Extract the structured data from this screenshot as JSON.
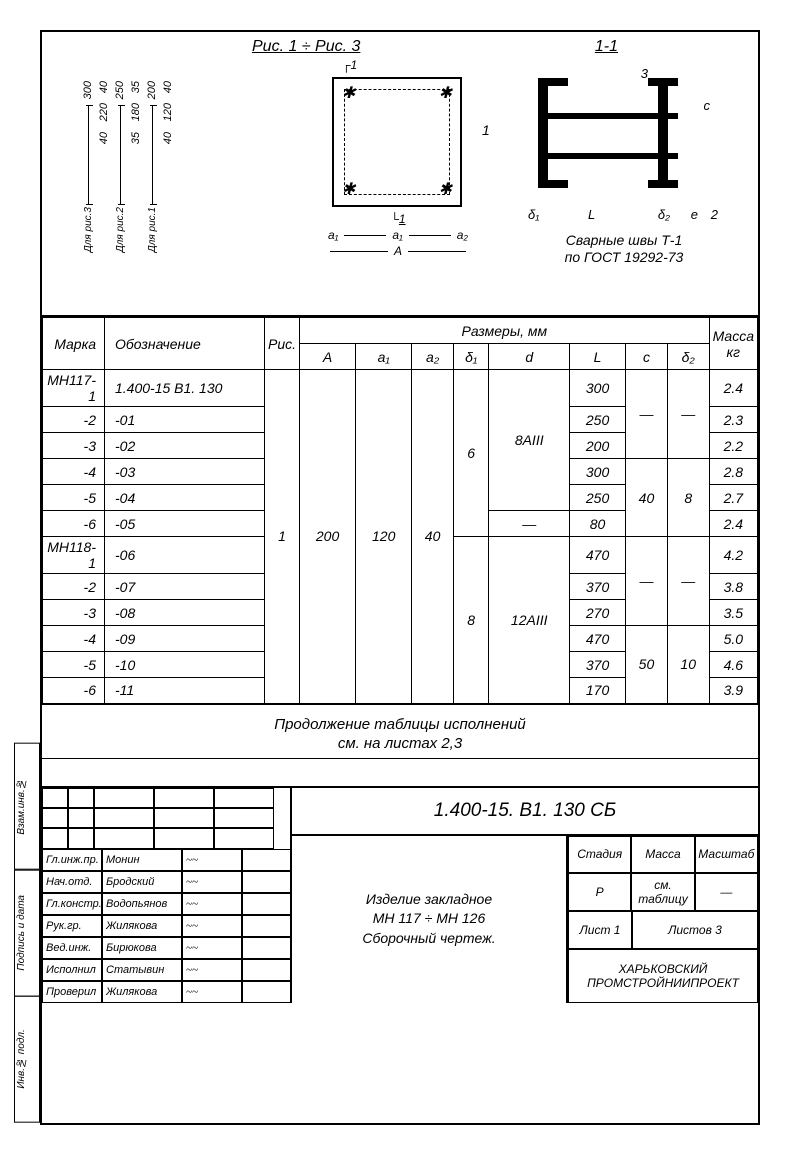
{
  "figure": {
    "title": "Рис. 1 ÷ Рис. 3",
    "section_label": "1-1",
    "dim_cols": [
      {
        "label": "Для рис.3",
        "vals": [
          "40",
          "220",
          "40",
          "300"
        ]
      },
      {
        "label": "Для рис.2",
        "vals": [
          "35",
          "180",
          "35",
          "250"
        ]
      },
      {
        "label": "Для рис.1",
        "vals": [
          "40",
          "120",
          "40",
          "200"
        ]
      }
    ],
    "plan_top": "1",
    "plan_callout": "1",
    "plan_a": "a₁",
    "plan_a2": "a₂",
    "plan_a_big": "a₁",
    "plan_A": "A",
    "section_labels": {
      "d1": "δ₁",
      "L": "L",
      "d2": "δ₂",
      "e": "e",
      "c": "c",
      "three": "3",
      "two": "2"
    },
    "note_line1": "Сварные швы Т-1",
    "note_line2": "по ГОСТ 19292-73"
  },
  "table": {
    "headers": {
      "marka": "Марка",
      "oboz": "Обозначение",
      "ris": "Рис.",
      "razmery": "Размеры, мм",
      "A": "A",
      "a1": "a₁",
      "a2": "a₂",
      "d1": "δ₁",
      "d": "d",
      "L": "L",
      "c": "c",
      "d2": "δ₂",
      "massa": "Масса кг"
    },
    "rows": [
      {
        "m": "МН117-1",
        "o": "1.400-15 В1. 130",
        "L": "300",
        "mass": "2.4"
      },
      {
        "m": "-2",
        "o": "-01",
        "L": "250",
        "mass": "2.3"
      },
      {
        "m": "-3",
        "o": "-02",
        "L": "200",
        "mass": "2.2"
      },
      {
        "m": "-4",
        "o": "-03",
        "L": "300",
        "mass": "2.8"
      },
      {
        "m": "-5",
        "o": "-04",
        "L": "250",
        "mass": "2.7"
      },
      {
        "m": "-6",
        "o": "-05",
        "L": "80",
        "mass": "2.4"
      },
      {
        "m": "МН118-1",
        "o": "-06",
        "L": "470",
        "mass": "4.2"
      },
      {
        "m": "-2",
        "o": "-07",
        "L": "370",
        "mass": "3.8"
      },
      {
        "m": "-3",
        "o": "-08",
        "L": "270",
        "mass": "3.5"
      },
      {
        "m": "-4",
        "o": "-09",
        "L": "470",
        "mass": "5.0"
      },
      {
        "m": "-5",
        "o": "-10",
        "L": "370",
        "mass": "4.6"
      },
      {
        "m": "-6",
        "o": "-11",
        "L": "170",
        "mass": "3.9"
      }
    ],
    "spans": {
      "ris": "1",
      "A": "200",
      "a1": "120",
      "a2": "40",
      "d1_top": "6",
      "d1_bot": "8",
      "d_top": "8AIII",
      "d_bot": "12AIII",
      "c_top": "—",
      "c_mid": "40",
      "c_bot1": "—",
      "c_bot2": "50",
      "d2_top": "—",
      "d2_mid": "8",
      "d2_bot1": "—",
      "d2_bot2": "10"
    }
  },
  "cont_note_1": "Продолжение таблицы исполнений",
  "cont_note_2": "см. на листах 2,3",
  "titleblock": {
    "doc_no": "1.400-15. В1. 130 СБ",
    "desc_l1": "Изделие закладное",
    "desc_l2": "МН 117 ÷ МН 126",
    "desc_l3": "Сборочный чертеж.",
    "roles": [
      {
        "r": "Гл.инж.пр.",
        "n": "Монин"
      },
      {
        "r": "Нач.отд.",
        "n": "Бродский"
      },
      {
        "r": "Гл.констр.",
        "n": "Водопьянов"
      },
      {
        "r": "Рук.гр.",
        "n": "Жилякова"
      },
      {
        "r": "Вед.инж.",
        "n": "Бирюкова"
      },
      {
        "r": "Исполнил",
        "n": "Статывин"
      },
      {
        "r": "Проверил",
        "n": "Жилякова"
      }
    ],
    "meta": {
      "stadia": "Стадия",
      "massa": "Масса",
      "masht": "Масштаб",
      "p": "Р",
      "cm": "см. таблицу",
      "dash": "—",
      "list": "Лист 1",
      "listov": "Листов  3"
    },
    "org_l1": "ХАРЬКОВСКИЙ",
    "org_l2": "ПРОМСТРОЙНИИПРОЕКТ"
  },
  "side": [
    "Взам.инв.№",
    "Подпись и дата",
    "Инв.№ подл."
  ]
}
